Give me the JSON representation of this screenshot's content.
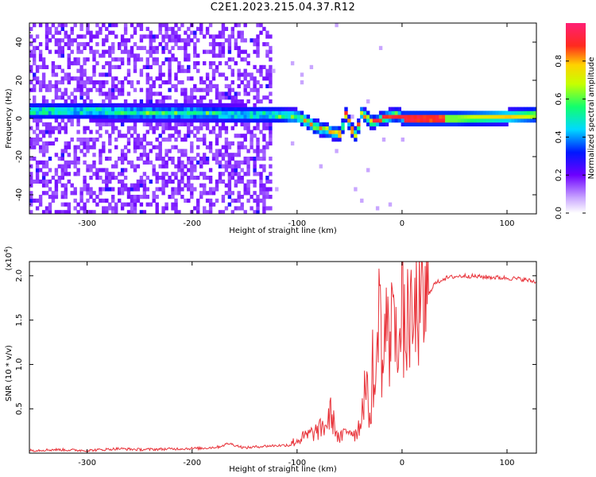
{
  "page": {
    "title": "C2E1.2023.215.04.37.R12"
  },
  "chart_data": [
    {
      "type": "heatmap",
      "title": "",
      "xlabel": "Height of straight line (km)",
      "ylabel": "Frequency (Hz)",
      "xlim": [
        -355,
        128
      ],
      "ylim": [
        -50,
        50
      ],
      "x_ticks": [
        -300,
        -200,
        -100,
        0,
        100
      ],
      "x_tick_labels": [
        "-300",
        "-200",
        "-100",
        "0",
        "100"
      ],
      "y_ticks": [
        -40,
        -20,
        0,
        20,
        40
      ],
      "y_tick_labels": [
        "-40",
        "-20",
        "0",
        "20",
        "40"
      ],
      "grid": false,
      "colorbar": {
        "label": "Normalized spectral amplitude",
        "range": [
          0,
          1
        ],
        "ticks": [
          0.0,
          0.2,
          0.4,
          0.6,
          0.8
        ],
        "tick_labels": [
          "0.0",
          "0.2",
          "0.4",
          "0.6",
          "0.8"
        ],
        "colormap": "rainbow (white → violet → blue → cyan → green → yellow → orange → red → magenta)"
      },
      "features": {
        "noise_region_x": [
          -355,
          -125
        ],
        "noise_amplitude": 0.15,
        "main_band_amplitude": 0.45,
        "ridge": [
          {
            "x": -355,
            "freq": 4
          },
          {
            "x": -300,
            "freq": 4
          },
          {
            "x": -250,
            "freq": 3
          },
          {
            "x": -200,
            "freq": 3
          },
          {
            "x": -150,
            "freq": 2
          },
          {
            "x": -120,
            "freq": 2
          },
          {
            "x": -100,
            "freq": 1
          },
          {
            "x": -85,
            "freq": -4
          },
          {
            "x": -70,
            "freq": -7
          },
          {
            "x": -60,
            "freq": -8
          },
          {
            "x": -55,
            "freq": 2
          },
          {
            "x": -50,
            "freq": -5
          },
          {
            "x": -45,
            "freq": -9
          },
          {
            "x": -40,
            "freq": 3
          },
          {
            "x": -30,
            "freq": -2
          },
          {
            "x": -15,
            "freq": 1
          },
          {
            "x": -5,
            "freq": 2
          },
          {
            "x": 0,
            "freq": 0
          },
          {
            "x": 50,
            "freq": 0
          },
          {
            "x": 100,
            "freq": 1
          },
          {
            "x": 128,
            "freq": 2
          }
        ]
      }
    },
    {
      "type": "line",
      "title": "",
      "xlabel": "Height of straight line (km)",
      "ylabel": "SNR (10 * v/v)",
      "y_multiplier_label": "(x10",
      "y_multiplier_exponent": "4",
      "y_multiplier_close": ")",
      "xlim": [
        -355,
        128
      ],
      "ylim": [
        0,
        21600
      ],
      "x_ticks": [
        -300,
        -200,
        -100,
        0,
        100
      ],
      "x_tick_labels": [
        "-300",
        "-200",
        "-100",
        "0",
        "100"
      ],
      "y_ticks": [
        5000,
        10000,
        15000,
        20000
      ],
      "y_tick_labels": [
        "0.5",
        "1.0",
        "1.5",
        "2.0"
      ],
      "grid": false,
      "color": "#e8333a",
      "series": [
        {
          "x": [
            -355,
            -330,
            -300,
            -270,
            -250,
            -230,
            -210,
            -190,
            -175,
            -165,
            -150,
            -130,
            -110,
            -100,
            -90,
            -80,
            -72,
            -68,
            -60,
            -50,
            -45,
            -40,
            -35,
            -30,
            -28,
            -25,
            -22,
            -20,
            -18,
            -15,
            -12,
            -10,
            -8,
            -5,
            -2,
            0,
            3,
            6,
            10,
            15,
            18,
            22,
            26,
            30,
            40,
            50,
            60,
            80,
            100,
            115,
            128
          ],
          "y": [
            300,
            400,
            300,
            500,
            400,
            450,
            500,
            550,
            700,
            1100,
            600,
            800,
            900,
            1400,
            2000,
            2500,
            3200,
            4500,
            1500,
            2800,
            2200,
            3200,
            8000,
            3500,
            10000,
            6000,
            21500,
            12000,
            9000,
            16000,
            10000,
            20000,
            13000,
            17000,
            11000,
            17500,
            12000,
            16000,
            13500,
            17000,
            15000,
            16800,
            18000,
            19000,
            19700,
            19900,
            20000,
            19850,
            19750,
            19600,
            19300
          ]
        }
      ]
    }
  ]
}
